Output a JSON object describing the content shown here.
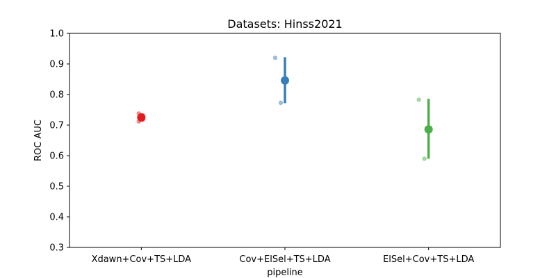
{
  "chart_data": {
    "type": "scatter",
    "title": "Datasets:  Hinss2021",
    "xlabel": "pipeline",
    "ylabel": "ROC AUC",
    "ylim": [
      0.3,
      1.0
    ],
    "yticks": [
      "0.3",
      "0.4",
      "0.5",
      "0.6",
      "0.7",
      "0.8",
      "0.9",
      "1.0"
    ],
    "categories": [
      "Xdawn+Cov+TS+LDA",
      "Cov+ElSel+TS+LDA",
      "ElSel+Cov+TS+LDA"
    ],
    "grid": false,
    "series": [
      {
        "category": "Xdawn+Cov+TS+LDA",
        "color": "#e41a1c",
        "points": [
          0.738,
          0.732,
          0.728,
          0.722,
          0.718,
          0.712
        ],
        "mean": 0.725,
        "ci": [
          0.715,
          0.735
        ]
      },
      {
        "category": "Cov+ElSel+TS+LDA",
        "color": "#377eb8",
        "points": [
          0.92,
          0.773
        ],
        "mean": 0.846,
        "ci": [
          0.772,
          0.922
        ]
      },
      {
        "category": "ElSel+Cov+TS+LDA",
        "color": "#4daf4a",
        "points": [
          0.783,
          0.59
        ],
        "mean": 0.686,
        "ci": [
          0.59,
          0.786
        ]
      }
    ]
  }
}
